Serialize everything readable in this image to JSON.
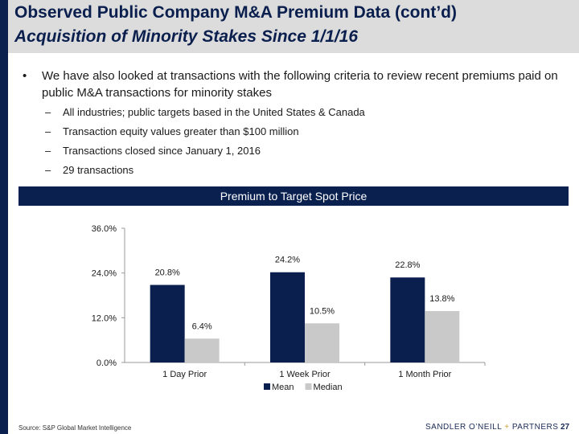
{
  "header": {
    "title_line1": "Observed Public Company M&A Premium Data (cont’d)",
    "title_line2": "Acquisition of Minority Stakes Since 1/1/16"
  },
  "body": {
    "main_bullet": "We have also looked at transactions with the following criteria to review recent premiums paid on public M&A transactions for minority stakes",
    "sub_bullets": [
      "All industries; public targets based in the United States & Canada",
      "Transaction equity values greater than $100 million",
      "Transactions closed since January 1, 2016",
      "29 transactions"
    ]
  },
  "banner": {
    "label": "Premium to Target Spot Price"
  },
  "chart_data": {
    "type": "bar",
    "title": "Premium to Target Spot Price",
    "categories": [
      "1 Day Prior",
      "1 Week Prior",
      "1 Month Prior"
    ],
    "series": [
      {
        "name": "Mean",
        "values": [
          20.8,
          24.2,
          22.8
        ],
        "labels": [
          "20.8%",
          "24.2%",
          "22.8%"
        ],
        "color": "#0a1f4e"
      },
      {
        "name": "Median",
        "values": [
          6.4,
          10.5,
          13.8
        ],
        "labels": [
          "6.4%",
          "10.5%",
          "13.8%"
        ],
        "color": "#c9c9c9"
      }
    ],
    "yticks": [
      0,
      12,
      24,
      36
    ],
    "ytick_labels": [
      "0.0%",
      "12.0%",
      "24.0%",
      "36.0%"
    ],
    "ylim": [
      0,
      36
    ],
    "legend": "bottom-center"
  },
  "footer": {
    "source": "Source: S&P Global Market Intelligence",
    "brand_left": "SANDLER O’NEILL",
    "brand_plus": "+",
    "brand_right": "PARTNERS",
    "page_number": "27"
  }
}
